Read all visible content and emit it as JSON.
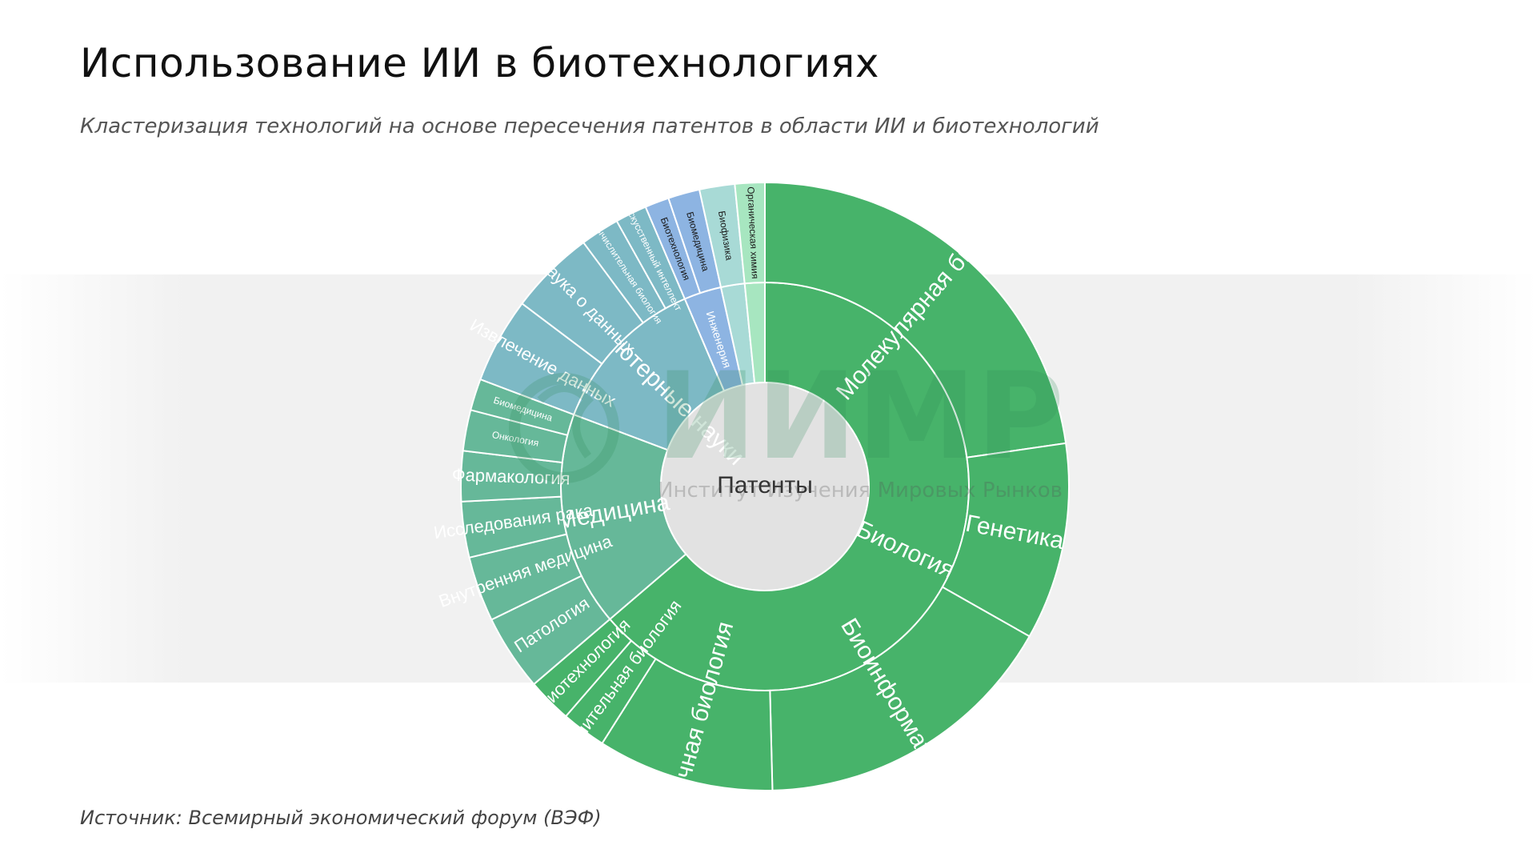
{
  "header": {
    "title": "Использование ИИ в биотехнологиях",
    "subtitle": "Кластеризация технологий на основе пересечения патентов в области ИИ и биотехнологий"
  },
  "footer": {
    "source": "Источник: Всемирный экономический форум (ВЭФ)"
  },
  "watermark": {
    "name": "ИИМР",
    "tagline": "Институт Изучения Мировых Рынков"
  },
  "chart_data": {
    "type": "sunburst",
    "center_label": "Патенты",
    "children": [
      {
        "name": "Биология",
        "value": 64.5,
        "color": "#47b36a",
        "children": [
          {
            "name": "Молекулярная биология",
            "value": 23.0
          },
          {
            "name": "Генетика",
            "value": 10.6
          },
          {
            "name": "Биоинформатика",
            "value": 16.6
          },
          {
            "name": "Клеточная биология",
            "value": 9.5
          },
          {
            "name": "Вычислительная биология",
            "value": 2.4
          },
          {
            "name": "Биотехнология",
            "value": 2.4
          }
        ]
      },
      {
        "name": "Медицина",
        "value": 17.2,
        "color": "#66b899",
        "children": [
          {
            "name": "Патология",
            "value": 4.1
          },
          {
            "name": "Внутренняя медицина",
            "value": 3.5
          },
          {
            "name": "Исследования рака",
            "value": 3.0
          },
          {
            "name": "Фармакология",
            "value": 2.7
          },
          {
            "name": "Онкология",
            "value": 2.2
          },
          {
            "name": "Биомедицина",
            "value": 1.7
          }
        ]
      },
      {
        "name": "Компьютерные науки",
        "value": 13.0,
        "color": "#7db9c5",
        "children": [
          {
            "name": "Извлечение данных",
            "value": 4.6
          },
          {
            "name": "Наука о данных",
            "value": 4.6
          },
          {
            "name": "Вычислительная биология",
            "value": 2.1
          },
          {
            "name": "Искусственный интеллект",
            "value": 1.7
          }
        ]
      },
      {
        "name": "Инженерия",
        "value": 3.0,
        "color": "#8db4e2",
        "children": [
          {
            "name": "Биотехнология",
            "value": 1.3
          },
          {
            "name": "Биомедицина",
            "value": 1.7
          }
        ]
      },
      {
        "name": "",
        "value": 1.9,
        "color": "#a8dad6",
        "children": [
          {
            "name": "Биофизика",
            "value": 1.9
          }
        ]
      },
      {
        "name": "",
        "value": 1.6,
        "color": "#a7e6c0",
        "children": [
          {
            "name": "Органическая химия",
            "value": 1.6
          }
        ]
      }
    ]
  }
}
